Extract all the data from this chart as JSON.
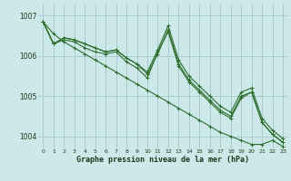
{
  "title": "Graphe pression niveau de la mer (hPa)",
  "bg_color": "#cce8e8",
  "grid_color": "#aacccc",
  "line_color": "#2d6e2d",
  "xlim": [
    -0.5,
    23.5
  ],
  "ylim": [
    1003.7,
    1007.3
  ],
  "yticks": [
    1004,
    1005,
    1006,
    1007
  ],
  "xticks": [
    0,
    1,
    2,
    3,
    4,
    5,
    6,
    7,
    8,
    9,
    10,
    11,
    12,
    13,
    14,
    15,
    16,
    17,
    18,
    19,
    20,
    21,
    22,
    23
  ],
  "series": [
    [
      1006.85,
      1006.55,
      1006.35,
      1006.2,
      1006.05,
      1005.9,
      1005.75,
      1005.6,
      1005.45,
      1005.3,
      1005.15,
      1005.0,
      1004.85,
      1004.7,
      1004.55,
      1004.4,
      1004.25,
      1004.1,
      1004.0,
      1003.9,
      1003.8,
      1003.8,
      1003.9,
      1003.75
    ],
    [
      1006.85,
      1006.3,
      1006.4,
      1006.35,
      1006.2,
      1006.1,
      1006.05,
      1006.1,
      1005.85,
      1005.7,
      1005.45,
      1006.1,
      1006.6,
      1005.75,
      1005.35,
      1005.1,
      1004.85,
      1004.6,
      1004.45,
      1004.95,
      1005.1,
      1004.35,
      1004.05,
      1003.85
    ],
    [
      1006.85,
      1006.3,
      1006.45,
      1006.4,
      1006.3,
      1006.2,
      1006.1,
      1006.15,
      1005.95,
      1005.8,
      1005.6,
      1006.15,
      1006.75,
      1005.9,
      1005.5,
      1005.25,
      1005.0,
      1004.75,
      1004.6,
      1005.1,
      1005.2,
      1004.45,
      1004.15,
      1003.95
    ],
    [
      1006.85,
      1006.3,
      1006.45,
      1006.4,
      1006.3,
      1006.2,
      1006.1,
      1006.15,
      1005.95,
      1005.8,
      1005.55,
      1006.05,
      1006.65,
      1005.8,
      1005.4,
      1005.15,
      1004.9,
      1004.65,
      1004.5,
      1005.0,
      1005.1,
      1004.35,
      1004.05,
      1003.85
    ]
  ]
}
